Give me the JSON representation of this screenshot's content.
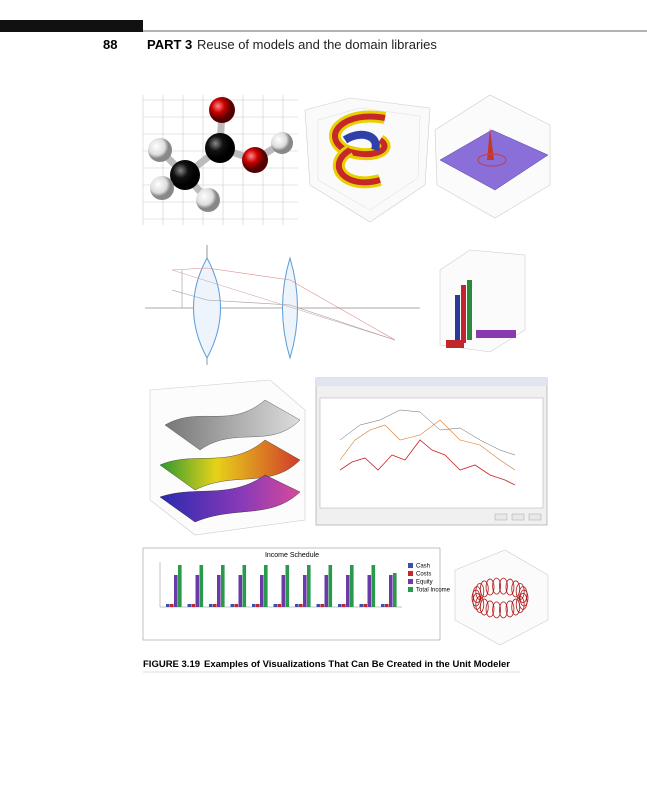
{
  "header": {
    "page_number": "88",
    "part": "PART 3",
    "part_title": "Reuse of models and the domain libraries"
  },
  "figure": {
    "panels": {
      "income_chart": {
        "title": "Income Schedule",
        "legend": [
          "Cash",
          "Costs",
          "Equity",
          "Total Income"
        ]
      }
    },
    "caption": {
      "label": "FIGURE 3.19",
      "text": "Examples of Visualizations That Can Be Created in the Unit Modeler"
    }
  }
}
